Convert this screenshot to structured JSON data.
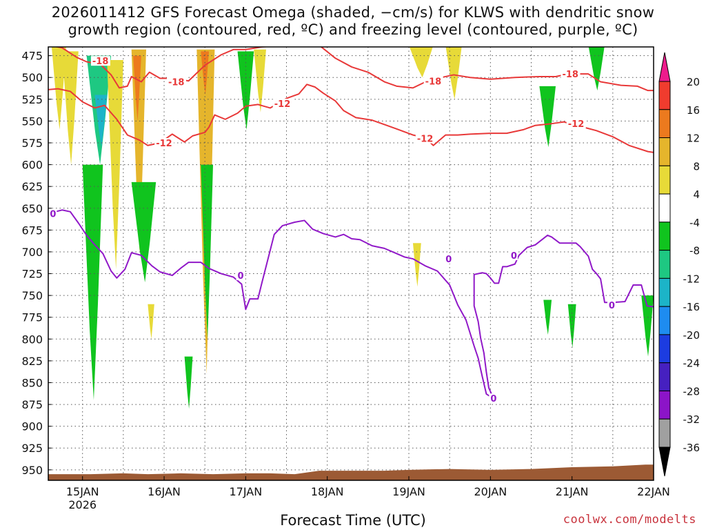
{
  "header": {
    "title_line1": "2026011412 GFS Forecast Omega (shaded, −cm/s) for KLWS with dendritic snow",
    "title_line2": "growth region (contoured, red, ºC) and freezing level (contoured, purple, ºC)"
  },
  "footer": {
    "credit": "coolwx.com/modelts"
  },
  "chart_data": {
    "type": "heatmap",
    "title": "2026011412 GFS Forecast Omega (shaded, −cm/s) for KLWS with dendritic snow growth region (contoured, red, ºC) and freezing level (contoured, purple, ºC)",
    "xlabel": "Forecast Time (UTC)",
    "ylabel": "",
    "x_range_days": [
      14.58,
      22.0
    ],
    "y_range_hpa": [
      465,
      962
    ],
    "y_ticks": [
      475,
      500,
      525,
      550,
      575,
      600,
      625,
      650,
      675,
      700,
      725,
      750,
      775,
      800,
      825,
      850,
      875,
      900,
      925,
      950
    ],
    "x_ticks": [
      {
        "day": 15,
        "label": "15JAN",
        "sublabel": "2026"
      },
      {
        "day": 16,
        "label": "16JAN",
        "sublabel": ""
      },
      {
        "day": 17,
        "label": "17JAN",
        "sublabel": ""
      },
      {
        "day": 18,
        "label": "18JAN",
        "sublabel": ""
      },
      {
        "day": 19,
        "label": "19JAN",
        "sublabel": ""
      },
      {
        "day": 20,
        "label": "20JAN",
        "sublabel": ""
      },
      {
        "day": 21,
        "label": "21JAN",
        "sublabel": ""
      },
      {
        "day": 22,
        "label": "22JAN",
        "sublabel": ""
      }
    ],
    "grid": true,
    "colorbar": {
      "labels": [
        "20",
        "16",
        "12",
        "8",
        "4",
        "-4",
        "-8",
        "-12",
        "-16",
        "-20",
        "-24",
        "-28",
        "-32",
        "-36"
      ],
      "bins": [
        {
          "color": "#ee1c8c"
        },
        {
          "color": "#f03c2e"
        },
        {
          "color": "#ec7a1e"
        },
        {
          "color": "#e5b52c"
        },
        {
          "color": "#e7da38"
        },
        {
          "color": "#ffffff"
        },
        {
          "color": "#10c41e"
        },
        {
          "color": "#1ec882"
        },
        {
          "color": "#1cb4c8"
        },
        {
          "color": "#1e8cf0"
        },
        {
          "color": "#1c3ce0"
        },
        {
          "color": "#4620c0"
        },
        {
          "color": "#8c14c8"
        },
        {
          "color": "#a0a0a0"
        },
        {
          "color": "#000000"
        }
      ]
    },
    "colors": {
      "dgz_contour": "#e83838",
      "freezing_contour": "#9018c8",
      "terrain": "#9c5a34",
      "omega_pos_light": "#e7da38",
      "omega_pos_mid": "#e5b52c",
      "omega_pos_high": "#ec7a1e",
      "omega_neg_light": "#10c41e",
      "omega_neg_mid": "#1ec882",
      "omega_neg_high": "#1cb4c8"
    },
    "contours": [
      {
        "name": "-18",
        "color": "#e83838",
        "points": [
          [
            14.58,
            463
          ],
          [
            14.75,
            466
          ],
          [
            14.93,
            477
          ],
          [
            15.05,
            482
          ],
          [
            15.22,
            485
          ],
          [
            15.35,
            497
          ],
          [
            15.45,
            512
          ],
          [
            15.55,
            510
          ],
          [
            15.6,
            499
          ],
          [
            15.72,
            505
          ],
          [
            15.82,
            494
          ],
          [
            15.95,
            501
          ],
          [
            16.1,
            501
          ],
          [
            16.3,
            504
          ],
          [
            16.5,
            486
          ],
          [
            16.7,
            474
          ],
          [
            16.85,
            468
          ],
          [
            17.0,
            468
          ],
          [
            17.2,
            465
          ],
          [
            17.5,
            463
          ],
          [
            17.9,
            463
          ],
          [
            18.1,
            478
          ],
          [
            18.3,
            488
          ],
          [
            18.5,
            494
          ],
          [
            18.7,
            505
          ],
          [
            18.85,
            510
          ],
          [
            19.05,
            512
          ],
          [
            19.25,
            503
          ],
          [
            19.55,
            497
          ],
          [
            19.75,
            500
          ],
          [
            20.0,
            502
          ],
          [
            20.3,
            500
          ],
          [
            20.6,
            499
          ],
          [
            20.8,
            499
          ],
          [
            20.95,
            496
          ],
          [
            21.2,
            496
          ],
          [
            21.35,
            505
          ],
          [
            21.6,
            509
          ],
          [
            21.8,
            510
          ],
          [
            21.93,
            515
          ],
          [
            22.0,
            515
          ]
        ],
        "labels": [
          [
            15.12,
            481
          ],
          [
            16.05,
            505
          ],
          [
            19.2,
            504
          ],
          [
            20.88,
            496
          ]
        ]
      },
      {
        "name": "-12",
        "color": "#e83838",
        "points": [
          [
            14.58,
            514
          ],
          [
            14.7,
            513
          ],
          [
            14.85,
            516
          ],
          [
            15.0,
            528
          ],
          [
            15.15,
            535
          ],
          [
            15.27,
            532
          ],
          [
            15.42,
            548
          ],
          [
            15.55,
            566
          ],
          [
            15.7,
            572
          ],
          [
            15.8,
            578
          ],
          [
            15.95,
            575
          ],
          [
            16.1,
            565
          ],
          [
            16.25,
            574
          ],
          [
            16.35,
            567
          ],
          [
            16.5,
            563
          ],
          [
            16.55,
            557
          ],
          [
            16.62,
            543
          ],
          [
            16.75,
            548
          ],
          [
            16.9,
            541
          ],
          [
            17.0,
            533
          ],
          [
            17.15,
            531
          ],
          [
            17.3,
            535
          ],
          [
            17.5,
            524
          ],
          [
            17.65,
            519
          ],
          [
            17.75,
            508
          ],
          [
            17.85,
            511
          ],
          [
            17.95,
            518
          ],
          [
            18.1,
            527
          ],
          [
            18.2,
            538
          ],
          [
            18.35,
            546
          ],
          [
            18.55,
            549
          ],
          [
            18.7,
            554
          ],
          [
            18.85,
            559
          ],
          [
            19.05,
            566
          ],
          [
            19.2,
            569
          ],
          [
            19.3,
            578
          ],
          [
            19.45,
            566
          ],
          [
            19.6,
            566
          ],
          [
            19.75,
            565
          ],
          [
            20.0,
            564
          ],
          [
            20.2,
            564
          ],
          [
            20.4,
            560
          ],
          [
            20.55,
            555
          ],
          [
            20.75,
            553
          ],
          [
            20.9,
            551
          ],
          [
            21.1,
            556
          ],
          [
            21.3,
            561
          ],
          [
            21.5,
            568
          ],
          [
            21.7,
            578
          ],
          [
            21.93,
            585
          ],
          [
            22.0,
            586
          ]
        ],
        "labels": [
          [
            15.9,
            575
          ],
          [
            17.35,
            530
          ],
          [
            19.1,
            570
          ],
          [
            20.95,
            553
          ]
        ]
      },
      {
        "name": "0",
        "color": "#9018c8",
        "points": [
          [
            14.58,
            656
          ],
          [
            14.75,
            652
          ],
          [
            14.85,
            654
          ],
          [
            14.95,
            667
          ],
          [
            15.05,
            681
          ],
          [
            15.15,
            692
          ],
          [
            15.25,
            702
          ],
          [
            15.35,
            722
          ],
          [
            15.42,
            730
          ],
          [
            15.52,
            720
          ],
          [
            15.6,
            701
          ],
          [
            15.72,
            704
          ],
          [
            15.85,
            716
          ],
          [
            15.95,
            723
          ],
          [
            16.1,
            727
          ],
          [
            16.2,
            719
          ],
          [
            16.3,
            712
          ],
          [
            16.45,
            712
          ],
          [
            16.55,
            719
          ],
          [
            16.7,
            725
          ],
          [
            16.85,
            729
          ],
          [
            16.95,
            737
          ],
          [
            17.0,
            766
          ],
          [
            17.05,
            754
          ],
          [
            17.15,
            754
          ],
          [
            17.2,
            735
          ],
          [
            17.35,
            680
          ],
          [
            17.45,
            670
          ],
          [
            17.6,
            666
          ],
          [
            17.72,
            664
          ],
          [
            17.82,
            674
          ],
          [
            17.95,
            679
          ],
          [
            18.1,
            683
          ],
          [
            18.2,
            680
          ],
          [
            18.3,
            685
          ],
          [
            18.4,
            686
          ],
          [
            18.55,
            693
          ],
          [
            18.7,
            696
          ],
          [
            18.85,
            702
          ],
          [
            18.95,
            706
          ],
          [
            19.05,
            708
          ],
          [
            19.2,
            716
          ],
          [
            19.35,
            722
          ],
          [
            19.5,
            738
          ],
          [
            19.6,
            761
          ],
          [
            19.7,
            778
          ],
          [
            19.8,
            808
          ],
          [
            19.85,
            822
          ],
          [
            19.9,
            843
          ],
          [
            19.95,
            863
          ],
          [
            20.0,
            866
          ],
          [
            20.05,
            871
          ],
          [
            19.98,
            856
          ],
          [
            19.95,
            838
          ],
          [
            19.92,
            816
          ],
          [
            19.88,
            799
          ],
          [
            19.85,
            780
          ],
          [
            19.8,
            762
          ],
          [
            19.8,
            726
          ],
          [
            19.9,
            724
          ],
          [
            19.95,
            725
          ],
          [
            20.0,
            730
          ],
          [
            20.05,
            736
          ],
          [
            20.1,
            736
          ],
          [
            20.15,
            717
          ],
          [
            20.2,
            717
          ],
          [
            20.3,
            714
          ],
          [
            20.35,
            704
          ],
          [
            20.45,
            695
          ],
          [
            20.55,
            692
          ],
          [
            20.7,
            681
          ],
          [
            20.75,
            683
          ],
          [
            20.85,
            690
          ],
          [
            20.95,
            690
          ],
          [
            21.05,
            690
          ],
          [
            21.1,
            694
          ],
          [
            21.2,
            705
          ],
          [
            21.25,
            720
          ],
          [
            21.3,
            725
          ],
          [
            21.35,
            731
          ],
          [
            21.4,
            758
          ],
          [
            21.5,
            758
          ],
          [
            21.65,
            757
          ],
          [
            21.75,
            738
          ],
          [
            21.85,
            738
          ],
          [
            21.92,
            762
          ],
          [
            22.0,
            763
          ]
        ],
        "labels": [
          [
            14.6,
            656
          ],
          [
            16.9,
            727
          ],
          [
            19.45,
            708
          ],
          [
            20.0,
            868
          ],
          [
            20.25,
            704
          ],
          [
            21.45,
            761
          ]
        ]
      }
    ],
    "terrain_top_hpa": [
      [
        14.58,
        955
      ],
      [
        15.1,
        955
      ],
      [
        15.5,
        954
      ],
      [
        15.8,
        955
      ],
      [
        16.2,
        954
      ],
      [
        16.6,
        955
      ],
      [
        17.0,
        954
      ],
      [
        17.3,
        954
      ],
      [
        17.6,
        955
      ],
      [
        17.9,
        951
      ],
      [
        18.3,
        951
      ],
      [
        18.7,
        951
      ],
      [
        19.0,
        950
      ],
      [
        19.5,
        949
      ],
      [
        20.0,
        950
      ],
      [
        20.5,
        949
      ],
      [
        21.0,
        947
      ],
      [
        21.5,
        946
      ],
      [
        21.9,
        944
      ],
      [
        22.0,
        944
      ]
    ],
    "omega_regions": [
      {
        "sign": "up",
        "level": 1,
        "x": [
          14.62,
          14.8
        ],
        "y": [
          463,
          560
        ]
      },
      {
        "sign": "up",
        "level": 1,
        "x": [
          14.75,
          14.95
        ],
        "y": [
          470,
          600
        ]
      },
      {
        "sign": "down",
        "level": 2,
        "x": [
          15.05,
          15.35
        ],
        "y": [
          475,
          600
        ]
      },
      {
        "sign": "down",
        "level": 3,
        "x": [
          15.15,
          15.3
        ],
        "y": [
          520,
          580
        ]
      },
      {
        "sign": "down",
        "level": 1,
        "x": [
          15.0,
          15.25
        ],
        "y": [
          600,
          870
        ]
      },
      {
        "sign": "up",
        "level": 1,
        "x": [
          15.3,
          15.5
        ],
        "y": [
          480,
          720
        ]
      },
      {
        "sign": "up",
        "level": 2,
        "x": [
          15.6,
          15.78
        ],
        "y": [
          468,
          700
        ]
      },
      {
        "sign": "up",
        "level": 3,
        "x": [
          15.62,
          15.72
        ],
        "y": [
          475,
          550
        ]
      },
      {
        "sign": "down",
        "level": 1,
        "x": [
          15.6,
          15.9
        ],
        "y": [
          620,
          735
        ]
      },
      {
        "sign": "up",
        "level": 1,
        "x": [
          15.8,
          15.88
        ],
        "y": [
          760,
          800
        ]
      },
      {
        "sign": "up",
        "level": 2,
        "x": [
          16.4,
          16.62
        ],
        "y": [
          468,
          840
        ]
      },
      {
        "sign": "up",
        "level": 3,
        "x": [
          16.45,
          16.55
        ],
        "y": [
          470,
          520
        ]
      },
      {
        "sign": "down",
        "level": 1,
        "x": [
          16.45,
          16.6
        ],
        "y": [
          600,
          800
        ]
      },
      {
        "sign": "down",
        "level": 1,
        "x": [
          16.9,
          17.1
        ],
        "y": [
          470,
          560
        ]
      },
      {
        "sign": "up",
        "level": 1,
        "x": [
          17.1,
          17.25
        ],
        "y": [
          468,
          540
        ]
      },
      {
        "sign": "up",
        "level": 1,
        "x": [
          19.0,
          19.3
        ],
        "y": [
          463,
          500
        ]
      },
      {
        "sign": "up",
        "level": 1,
        "x": [
          19.45,
          19.65
        ],
        "y": [
          463,
          525
        ]
      },
      {
        "sign": "up",
        "level": 1,
        "x": [
          19.05,
          19.15
        ],
        "y": [
          690,
          740
        ]
      },
      {
        "sign": "down",
        "level": 1,
        "x": [
          20.6,
          20.8
        ],
        "y": [
          510,
          580
        ]
      },
      {
        "sign": "down",
        "level": 1,
        "x": [
          21.2,
          21.4
        ],
        "y": [
          463,
          515
        ]
      },
      {
        "sign": "down",
        "level": 1,
        "x": [
          20.65,
          20.75
        ],
        "y": [
          755,
          795
        ]
      },
      {
        "sign": "down",
        "level": 1,
        "x": [
          20.95,
          21.05
        ],
        "y": [
          760,
          810
        ]
      },
      {
        "sign": "down",
        "level": 1,
        "x": [
          21.85,
          22.0
        ],
        "y": [
          750,
          820
        ]
      },
      {
        "sign": "down",
        "level": 1,
        "x": [
          16.25,
          16.35
        ],
        "y": [
          820,
          880
        ]
      }
    ]
  }
}
